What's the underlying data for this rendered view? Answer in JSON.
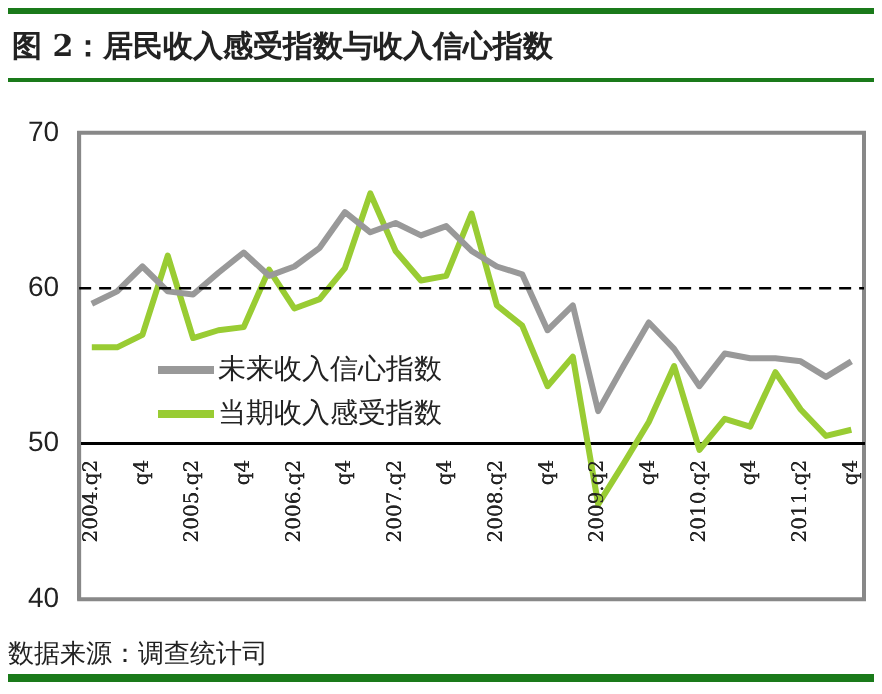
{
  "chart_data": {
    "type": "line",
    "title": "图 2：居民收入感受指数与收入信心指数",
    "categories": [
      "2004.q2",
      null,
      "q4",
      null,
      "2005.q2",
      null,
      "q4",
      null,
      "2006.q2",
      null,
      "q4",
      null,
      "2007.q2",
      null,
      "q4",
      null,
      "2008.q2",
      null,
      "q4",
      null,
      "2009.q2",
      null,
      "q4",
      null,
      "2010.q2",
      null,
      "q4",
      null,
      "2011.q2",
      null,
      "q4"
    ],
    "series": [
      {
        "name": "未来收入信心指数",
        "color": "#999999",
        "values": [
          59.0,
          59.8,
          61.4,
          59.8,
          59.6,
          61.0,
          62.3,
          60.8,
          61.4,
          62.6,
          64.9,
          63.6,
          64.2,
          63.4,
          64.0,
          62.4,
          61.4,
          60.9,
          57.3,
          58.9,
          52.1,
          55.0,
          57.8,
          56.1,
          53.7,
          55.8,
          55.5,
          55.5,
          55.3,
          54.3,
          55.3
        ]
      },
      {
        "name": "当期收入感受指数",
        "color": "#99cc33",
        "values": [
          56.2,
          56.2,
          57.0,
          62.1,
          56.8,
          57.3,
          57.5,
          61.2,
          58.7,
          59.3,
          61.3,
          66.1,
          62.4,
          60.5,
          60.8,
          64.8,
          58.9,
          57.6,
          53.7,
          55.6,
          46.1,
          48.7,
          51.4,
          55.0,
          49.6,
          51.6,
          51.1,
          54.6,
          52.2,
          50.5,
          50.9
        ]
      }
    ],
    "ylim": [
      40,
      70
    ],
    "yticks": [
      40,
      50,
      60,
      70
    ],
    "grid": false,
    "legend": "left",
    "marker": "none",
    "line_style": "solid",
    "ref_lines": [
      {
        "axis": "y",
        "value": 60,
        "color": "#000000",
        "line_style": "dashed"
      }
    ],
    "annotations": [
      "数据来源：调查统计司"
    ]
  }
}
